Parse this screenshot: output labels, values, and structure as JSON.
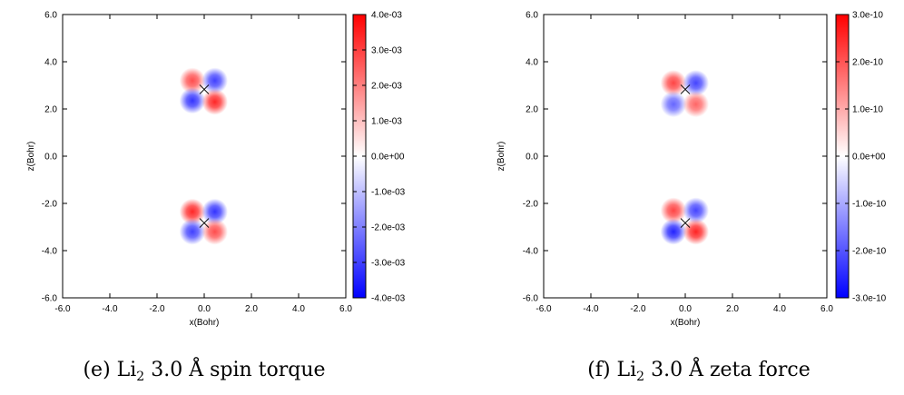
{
  "chart_data": [
    {
      "type": "heatmap",
      "caption": {
        "prefix": "(e) Li",
        "subscript": "2",
        "suffix": " 3.0 Å spin torque"
      },
      "xlabel": "x(Bohr)",
      "ylabel": "z(Bohr)",
      "xlim": [
        -6,
        6
      ],
      "ylim": [
        -6,
        6
      ],
      "x_ticks": [
        "-6.0",
        "-4.0",
        "-2.0",
        "0.0",
        "2.0",
        "4.0",
        "6.0"
      ],
      "y_ticks": [
        "6.0",
        "4.0",
        "2.0",
        "0.0",
        "-2.0",
        "-4.0",
        "-6.0"
      ],
      "colorbar": {
        "min": -0.004,
        "max": 0.004,
        "low_color": "#0000ff",
        "mid_color": "#ffffff",
        "high_color": "#ff0000",
        "ticks": [
          "4.0e-03",
          "3.0e-03",
          "2.0e-03",
          "1.0e-03",
          "0.0e+00",
          "-1.0e-03",
          "-2.0e-03",
          "-3.0e-03",
          "-4.0e-03"
        ]
      },
      "atoms": [
        {
          "x": 0,
          "z": 2.83
        },
        {
          "x": 0,
          "z": -2.83
        }
      ],
      "lobes": [
        {
          "x": -0.5,
          "z": 3.2,
          "value": 0.0028
        },
        {
          "x": 0.45,
          "z": 3.2,
          "value": -0.003
        },
        {
          "x": -0.5,
          "z": 2.35,
          "value": -0.0032
        },
        {
          "x": 0.45,
          "z": 2.3,
          "value": 0.0034
        },
        {
          "x": -0.5,
          "z": -2.35,
          "value": 0.0034
        },
        {
          "x": 0.45,
          "z": -2.35,
          "value": -0.0032
        },
        {
          "x": -0.5,
          "z": -3.2,
          "value": -0.003
        },
        {
          "x": 0.45,
          "z": -3.2,
          "value": 0.0028
        }
      ]
    },
    {
      "type": "heatmap",
      "caption": {
        "prefix": "(f) Li",
        "subscript": "2",
        "suffix": " 3.0 Å zeta force"
      },
      "xlabel": "x(Bohr)",
      "ylabel": "z(Bohr)",
      "xlim": [
        -6,
        6
      ],
      "ylim": [
        -6,
        6
      ],
      "x_ticks": [
        "-6.0",
        "-4.0",
        "-2.0",
        "0.0",
        "2.0",
        "4.0",
        "6.0"
      ],
      "y_ticks": [
        "6.0",
        "4.0",
        "2.0",
        "0.0",
        "-2.0",
        "-4.0",
        "-6.0"
      ],
      "colorbar": {
        "min": -3e-10,
        "max": 3e-10,
        "low_color": "#0000ff",
        "mid_color": "#ffffff",
        "high_color": "#ff0000",
        "ticks": [
          "3.0e-10",
          "2.0e-10",
          "1.0e-10",
          "0.0e+00",
          "-1.0e-10",
          "-2.0e-10",
          "-3.0e-10"
        ]
      },
      "atoms": [
        {
          "x": 0,
          "z": 2.83
        },
        {
          "x": 0,
          "z": -2.83
        }
      ],
      "lobes": [
        {
          "x": -0.5,
          "z": 3.1,
          "value": 2.2e-10
        },
        {
          "x": 0.45,
          "z": 3.1,
          "value": -2.2e-10
        },
        {
          "x": -0.5,
          "z": 2.2,
          "value": -1.8e-10
        },
        {
          "x": 0.45,
          "z": 2.2,
          "value": 1.8e-10
        },
        {
          "x": -0.5,
          "z": -2.3,
          "value": 2.2e-10
        },
        {
          "x": 0.45,
          "z": -2.3,
          "value": -2.2e-10
        },
        {
          "x": -0.5,
          "z": -3.2,
          "value": -2.6e-10
        },
        {
          "x": 0.45,
          "z": -3.2,
          "value": 2.6e-10
        }
      ]
    }
  ]
}
